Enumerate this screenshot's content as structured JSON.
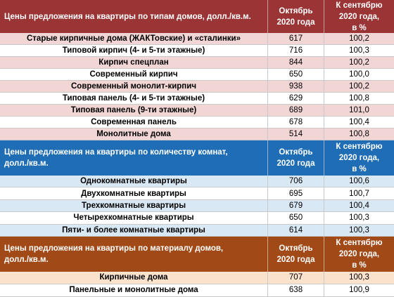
{
  "sections": [
    {
      "header": {
        "title": "Цены предложения на квартиры по типам домов, долл./кв.м.",
        "col1": "Октябрь\n2020 года",
        "col2": "К сентябрю\n2020 года,\nв %"
      },
      "rows": [
        [
          "Старые кирпичные дома (ЖАКТовские) и «сталинки»",
          "617",
          "100,2"
        ],
        [
          "Типовой кирпич (4- и 5-ти этажные)",
          "716",
          "100,3"
        ],
        [
          "Кирпич спецплан",
          "844",
          "100,2"
        ],
        [
          "Современный кирпич",
          "650",
          "100,0"
        ],
        [
          "Современный монолит-кирпич",
          "938",
          "100,2"
        ],
        [
          "Типовая панель (4- и 5-ти этажные)",
          "629",
          "100,8"
        ],
        [
          "Типовая панель (9-ти этажные)",
          "689",
          "101,0"
        ],
        [
          "Современная панель",
          "678",
          "100,4"
        ],
        [
          "Монолитные дома",
          "514",
          "100,8"
        ]
      ]
    },
    {
      "header": {
        "title": "Цены предложения на квартиры по количеству комнат,\nдолл./кв.м.",
        "col1": "Октябрь\n2020 года",
        "col2": "К сентябрю\n2020 года,\nв %"
      },
      "rows": [
        [
          "Однокомнатные квартиры",
          "706",
          "100,6"
        ],
        [
          "Двухкомнатные квартиры",
          "695",
          "100,7"
        ],
        [
          "Трехкомнатные квартиры",
          "679",
          "100,4"
        ],
        [
          "Четырехкомнатные квартиры",
          "650",
          "100,3"
        ],
        [
          "Пяти- и более комнатные квартиры",
          "614",
          "100,3"
        ]
      ]
    },
    {
      "header": {
        "title": "Цены предложения на квартиры по материалу домов,\nдолл./кв.м.",
        "col1": "Октябрь\n2020 года",
        "col2": "К сентябрю\n2020 года,\nв %"
      },
      "rows": [
        [
          "Кирпичные дома",
          "707",
          "100,3"
        ],
        [
          "Панельные и монолитные дома",
          "638",
          "100,9"
        ]
      ]
    }
  ]
}
